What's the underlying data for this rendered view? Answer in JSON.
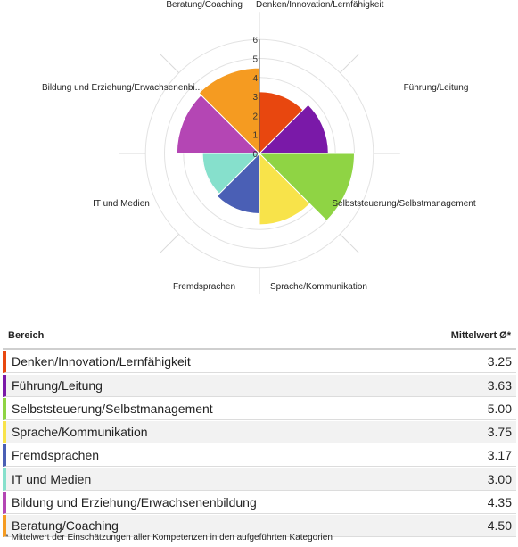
{
  "chart_data": {
    "type": "polar-area",
    "title": "",
    "rmax": 6,
    "ticks": [
      "0",
      "1",
      "2",
      "3",
      "4",
      "5",
      "6"
    ],
    "categories": [
      "Denken/Innovation/Lernfähigkeit",
      "Führung/Leitung",
      "Selbststeuerung/Selbstmanagement",
      "Sprache/Kommunikation",
      "Fremdsprachen",
      "IT und Medien",
      "Bildung und Erziehung/Erwachsenenbi...",
      "Beratung/Coaching"
    ],
    "values": [
      3.25,
      3.63,
      5.0,
      3.75,
      3.17,
      3.0,
      4.35,
      4.5
    ],
    "colors": [
      "#e8470f",
      "#7a19a8",
      "#8fd444",
      "#f8e34a",
      "#4a5fb5",
      "#86e0cc",
      "#b446b4",
      "#f59b21"
    ]
  },
  "table": {
    "header_area": "Bereich",
    "header_value": "Mittelwert Ø*",
    "rows": [
      {
        "label": "Denken/Innovation/Lernfähigkeit",
        "value": "3.25",
        "color": "#e8470f"
      },
      {
        "label": "Führung/Leitung",
        "value": "3.63",
        "color": "#7a19a8"
      },
      {
        "label": "Selbststeuerung/Selbstmanagement",
        "value": "5.00",
        "color": "#8fd444"
      },
      {
        "label": "Sprache/Kommunikation",
        "value": "3.75",
        "color": "#f8e34a"
      },
      {
        "label": "Fremdsprachen",
        "value": "3.17",
        "color": "#4a5fb5"
      },
      {
        "label": "IT und Medien",
        "value": "3.00",
        "color": "#86e0cc"
      },
      {
        "label": "Bildung und Erziehung/Erwachsenenbildung",
        "value": "4.35",
        "color": "#b446b4"
      },
      {
        "label": "Beratung/Coaching",
        "value": "4.50",
        "color": "#f59b21"
      }
    ]
  },
  "footnote": "* Mittelwert der Einschätzungen aller Kompetenzen in den aufgeführten Kategorien"
}
